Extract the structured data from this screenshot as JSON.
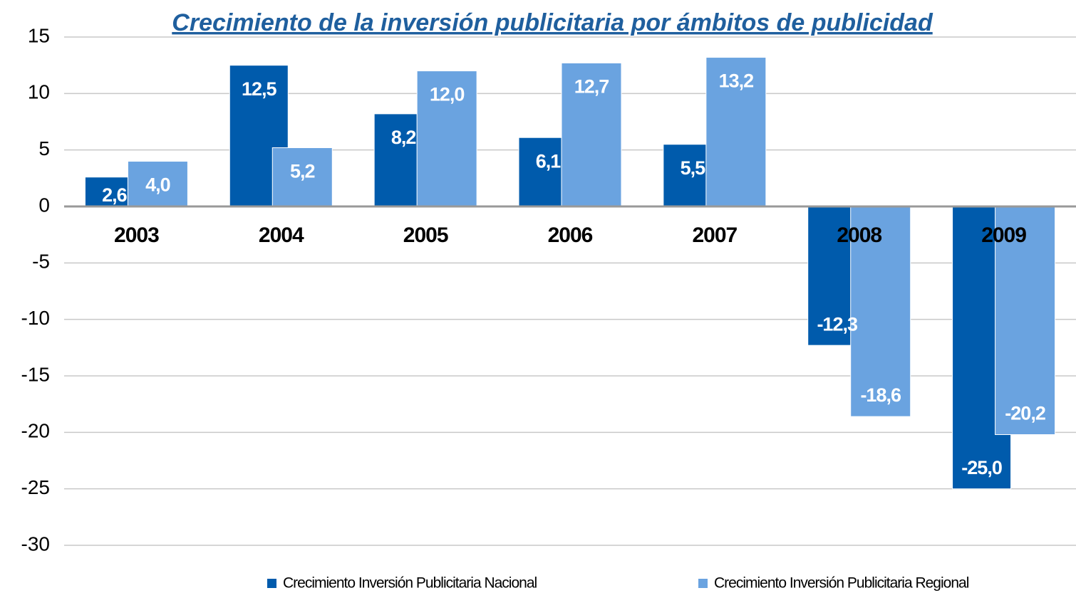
{
  "chart_data": {
    "type": "bar",
    "title": "Crecimiento de la inversión publicitaria por ámbitos de publicidad",
    "categories": [
      "2003",
      "2004",
      "2005",
      "2006",
      "2007",
      "2008",
      "2009"
    ],
    "series": [
      {
        "name": "Crecimiento Inversión Publicitaria Nacional",
        "color": "#005bac",
        "values": [
          2.6,
          12.5,
          8.2,
          6.1,
          5.5,
          -12.3,
          -25.0
        ],
        "value_labels": [
          "2,6",
          "12,5",
          "8,2",
          "6,1",
          "5,5",
          "-12,3",
          "-25,0"
        ]
      },
      {
        "name": "Crecimiento Inversión Publicitaria Regional",
        "color": "#6aa3e0",
        "values": [
          4.0,
          5.2,
          12.0,
          12.7,
          13.2,
          -18.6,
          -20.2
        ],
        "value_labels": [
          "4,0",
          "5,2",
          "12,0",
          "12,7",
          "13,2",
          "-18,6",
          "-20,2"
        ]
      }
    ],
    "ylim": [
      -30,
      15
    ],
    "yticks": [
      15,
      10,
      5,
      0,
      -5,
      -10,
      -15,
      -20,
      -25,
      -30
    ],
    "grid": true,
    "legend": "bottom"
  }
}
